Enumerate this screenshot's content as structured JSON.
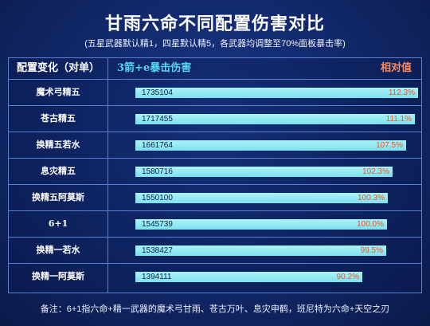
{
  "title": "甘雨六命不同配置伤害对比",
  "subtitle": "(五星武器默认精1，四星默认精5，各武器均调整至70%面板暴击率)",
  "footnote": "备注：6+1指六命+精一武器的魔术弓甘雨、苍古万叶、息灾申鹤，班尼特为六命+天空之刃",
  "colors": {
    "background": "#122a6e",
    "bar": "#8fe9f2",
    "damage_header": "#56d8ee",
    "relative_header": "#ff8a5c",
    "percent_text": "#e8572a",
    "grid_line": "#5c7fd0"
  },
  "chart_data": {
    "type": "bar",
    "orientation": "horizontal",
    "headers": {
      "config": "配置变化（对单）",
      "damage": "3箭+e暴击伤害",
      "relative": "相对值"
    },
    "rows": [
      {
        "label": "魔术弓精五",
        "value": "1735104",
        "relative_text": "112.3%",
        "relative": 112.3
      },
      {
        "label": "苍古精五",
        "value": "1717455",
        "relative_text": "111.1%",
        "relative": 111.1
      },
      {
        "label": "换精五若水",
        "value": "1661764",
        "relative_text": "107.5%",
        "relative": 107.5
      },
      {
        "label": "息灾精五",
        "value": "1580716",
        "relative_text": "102.3%",
        "relative": 102.3
      },
      {
        "label": "换精五阿莫斯",
        "value": "1550100",
        "relative_text": "100.3%",
        "relative": 100.3
      },
      {
        "label": "6+1",
        "value": "1545739",
        "relative_text": "100.0%",
        "relative": 100.0
      },
      {
        "label": "换精一若水",
        "value": "1538427",
        "relative_text": "99.5%",
        "relative": 99.5
      },
      {
        "label": "换精一阿莫斯",
        "value": "1394111",
        "relative_text": "90.2%",
        "relative": 90.2
      }
    ]
  }
}
